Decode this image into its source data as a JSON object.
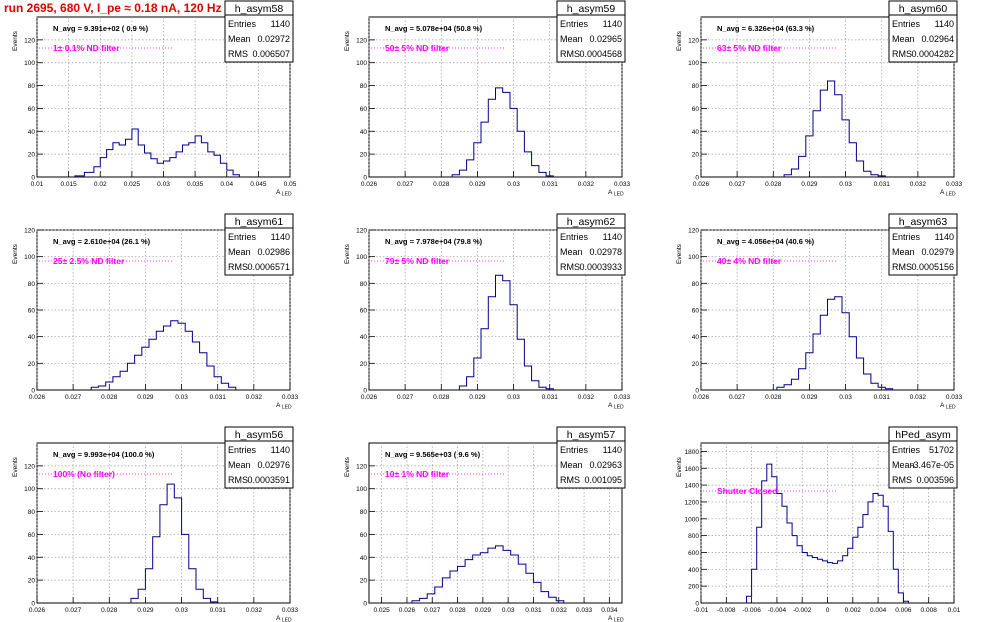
{
  "page": {
    "title": "run 2695,   680 V, I_pe ≈ 0.18 nA, 120 Hz"
  },
  "colors": {
    "histogram_line": "#00008b",
    "annotation_magenta": "#ff00ff",
    "title_red": "#e00000",
    "grid": "#9a9a9a"
  },
  "chart_data": [
    {
      "type": "histogram",
      "name": "h_asym58",
      "stats": {
        "entries": "1140",
        "mean": "0.02972",
        "rms": "0.006507"
      },
      "n_avg_text": "N_avg = 9.391e+02 ( 0.9 %)",
      "filter_text": "1± 0.1% ND filter",
      "ylabel": "Events",
      "xlabel": "A",
      "xlabel_sub": "LED",
      "xlim": [
        0.01,
        0.05
      ],
      "ylim": [
        0,
        140
      ],
      "xticks": [
        0.01,
        0.015,
        0.02,
        0.025,
        0.03,
        0.035,
        0.04,
        0.045,
        0.05
      ],
      "xtick_labels": [
        "0.01",
        "0.015",
        "0.02",
        "0.025",
        "0.03",
        "0.035",
        "0.04",
        "0.045",
        "0.05"
      ],
      "yticks": [
        0,
        20,
        40,
        60,
        80,
        100,
        120
      ],
      "ytick_labels": [
        "0",
        "20",
        "40",
        "60",
        "80",
        "100",
        "120"
      ],
      "bin_edges": [
        0.016,
        0.0175,
        0.019,
        0.02,
        0.021,
        0.022,
        0.023,
        0.024,
        0.025,
        0.026,
        0.027,
        0.028,
        0.029,
        0.03,
        0.031,
        0.032,
        0.033,
        0.034,
        0.035,
        0.036,
        0.037,
        0.038,
        0.039,
        0.04,
        0.041,
        0.042
      ],
      "counts": [
        1,
        4,
        9,
        17,
        24,
        30,
        28,
        33,
        42,
        28,
        21,
        16,
        12,
        14,
        17,
        22,
        28,
        30,
        36,
        30,
        22,
        19,
        12,
        6,
        2
      ]
    },
    {
      "type": "histogram",
      "name": "h_asym59",
      "stats": {
        "entries": "1140",
        "mean": "0.02965",
        "rms": "0.0004568"
      },
      "n_avg_text": "N_avg = 5.078e+04 (50.8 %)",
      "filter_text": "50± 5% ND filter",
      "ylabel": "Events",
      "xlabel": "A",
      "xlabel_sub": "LED",
      "xlim": [
        0.026,
        0.033
      ],
      "ylim": [
        0,
        140
      ],
      "xticks": [
        0.026,
        0.027,
        0.028,
        0.029,
        0.03,
        0.031,
        0.032,
        0.033
      ],
      "xtick_labels": [
        "0.026",
        "0.027",
        "0.028",
        "0.029",
        "0.03",
        "0.031",
        "0.032",
        "0.033"
      ],
      "yticks": [
        0,
        20,
        40,
        60,
        80,
        100,
        120
      ],
      "ytick_labels": [
        "0",
        "20",
        "40",
        "60",
        "80",
        "100",
        "120"
      ],
      "bin_edges": [
        0.0283,
        0.0285,
        0.0287,
        0.0289,
        0.0291,
        0.0293,
        0.0295,
        0.0297,
        0.0299,
        0.0301,
        0.0303,
        0.0305,
        0.0307,
        0.0309,
        0.0311
      ],
      "counts": [
        2,
        6,
        15,
        30,
        48,
        68,
        78,
        74,
        60,
        40,
        22,
        10,
        4,
        1
      ]
    },
    {
      "type": "histogram",
      "name": "h_asym60",
      "stats": {
        "entries": "1140",
        "mean": "0.02964",
        "rms": "0.0004282"
      },
      "n_avg_text": "N_avg = 6.326e+04 (63.3 %)",
      "filter_text": "63± 5% ND filter",
      "ylabel": "Events",
      "xlabel": "A",
      "xlabel_sub": "LED",
      "xlim": [
        0.026,
        0.033
      ],
      "ylim": [
        0,
        140
      ],
      "xticks": [
        0.026,
        0.027,
        0.028,
        0.029,
        0.03,
        0.031,
        0.032,
        0.033
      ],
      "xtick_labels": [
        "0.026",
        "0.027",
        "0.028",
        "0.029",
        "0.03",
        "0.031",
        "0.032",
        "0.033"
      ],
      "yticks": [
        0,
        20,
        40,
        60,
        80,
        100,
        120
      ],
      "ytick_labels": [
        "0",
        "20",
        "40",
        "60",
        "80",
        "100",
        "120"
      ],
      "bin_edges": [
        0.0283,
        0.0285,
        0.0287,
        0.0289,
        0.0291,
        0.0293,
        0.0295,
        0.0297,
        0.0299,
        0.0301,
        0.0303,
        0.0305,
        0.0307,
        0.0309,
        0.0311
      ],
      "counts": [
        2,
        7,
        18,
        36,
        58,
        76,
        84,
        72,
        50,
        30,
        14,
        5,
        2,
        1
      ]
    },
    {
      "type": "histogram",
      "name": "h_asym61",
      "stats": {
        "entries": "1140",
        "mean": "0.02986",
        "rms": "0.0006571"
      },
      "n_avg_text": "N_avg = 2.610e+04 (26.1 %)",
      "filter_text": "25± 2.5% ND filter",
      "ylabel": "Events",
      "xlabel": "A",
      "xlabel_sub": "LED",
      "xlim": [
        0.026,
        0.033
      ],
      "ylim": [
        0,
        120
      ],
      "xticks": [
        0.026,
        0.027,
        0.028,
        0.029,
        0.03,
        0.031,
        0.032,
        0.033
      ],
      "xtick_labels": [
        "0.026",
        "0.027",
        "0.028",
        "0.029",
        "0.03",
        "0.031",
        "0.032",
        "0.033"
      ],
      "yticks": [
        0,
        20,
        40,
        60,
        80,
        100,
        120
      ],
      "ytick_labels": [
        "0",
        "20",
        "40",
        "60",
        "80",
        "100",
        "120"
      ],
      "bin_edges": [
        0.0275,
        0.0277,
        0.0279,
        0.0281,
        0.0283,
        0.0285,
        0.0287,
        0.0289,
        0.0291,
        0.0293,
        0.0295,
        0.0297,
        0.0299,
        0.0301,
        0.0303,
        0.0305,
        0.0307,
        0.0309,
        0.0311,
        0.0313,
        0.0315
      ],
      "counts": [
        2,
        3,
        6,
        10,
        14,
        20,
        26,
        32,
        38,
        44,
        48,
        52,
        50,
        44,
        36,
        28,
        18,
        10,
        5,
        2
      ]
    },
    {
      "type": "histogram",
      "name": "h_asym62",
      "stats": {
        "entries": "1140",
        "mean": "0.02978",
        "rms": "0.0003933"
      },
      "n_avg_text": "N_avg = 7.978e+04 (79.8 %)",
      "filter_text": "79± 5% ND filter",
      "ylabel": "Events",
      "xlabel": "A",
      "xlabel_sub": "LED",
      "xlim": [
        0.026,
        0.033
      ],
      "ylim": [
        0,
        120
      ],
      "xticks": [
        0.026,
        0.027,
        0.028,
        0.029,
        0.03,
        0.031,
        0.032,
        0.033
      ],
      "xtick_labels": [
        "0.026",
        "0.027",
        "0.028",
        "0.029",
        "0.03",
        "0.031",
        "0.032",
        "0.033"
      ],
      "yticks": [
        0,
        20,
        40,
        60,
        80,
        100,
        120
      ],
      "ytick_labels": [
        "0",
        "20",
        "40",
        "60",
        "80",
        "100",
        "120"
      ],
      "bin_edges": [
        0.0285,
        0.0287,
        0.0289,
        0.0291,
        0.0293,
        0.0295,
        0.0297,
        0.0299,
        0.0301,
        0.0303,
        0.0305,
        0.0307,
        0.0309,
        0.0311
      ],
      "counts": [
        3,
        10,
        24,
        46,
        70,
        86,
        82,
        64,
        38,
        18,
        7,
        2,
        1
      ]
    },
    {
      "type": "histogram",
      "name": "h_asym63",
      "stats": {
        "entries": "1140",
        "mean": "0.02979",
        "rms": "0.0005156"
      },
      "n_avg_text": "N_avg = 4.056e+04 (40.6 %)",
      "filter_text": "40± 4% ND filter",
      "ylabel": "Events",
      "xlabel": "A",
      "xlabel_sub": "LED",
      "xlim": [
        0.026,
        0.033
      ],
      "ylim": [
        0,
        120
      ],
      "xticks": [
        0.026,
        0.027,
        0.028,
        0.029,
        0.03,
        0.031,
        0.032,
        0.033
      ],
      "xtick_labels": [
        "0.026",
        "0.027",
        "0.028",
        "0.029",
        "0.03",
        "0.031",
        "0.032",
        "0.033"
      ],
      "yticks": [
        0,
        20,
        40,
        60,
        80,
        100,
        120
      ],
      "ytick_labels": [
        "0",
        "20",
        "40",
        "60",
        "80",
        "100",
        "120"
      ],
      "bin_edges": [
        0.0281,
        0.0283,
        0.0285,
        0.0287,
        0.0289,
        0.0291,
        0.0293,
        0.0295,
        0.0297,
        0.0299,
        0.0301,
        0.0303,
        0.0305,
        0.0307,
        0.0309,
        0.0311,
        0.0313
      ],
      "counts": [
        2,
        4,
        8,
        16,
        28,
        42,
        56,
        68,
        70,
        58,
        40,
        24,
        12,
        5,
        2,
        1
      ]
    },
    {
      "type": "histogram",
      "name": "h_asym56",
      "stats": {
        "entries": "1140",
        "mean": "0.02976",
        "rms": "0.0003591"
      },
      "n_avg_text": "N_avg = 9.993e+04 (100.0 %)",
      "filter_text": "100% (No filter)",
      "ylabel": "Events",
      "xlabel": "A",
      "xlabel_sub": "LED",
      "xlim": [
        0.026,
        0.033
      ],
      "ylim": [
        0,
        140
      ],
      "xticks": [
        0.026,
        0.027,
        0.028,
        0.029,
        0.03,
        0.031,
        0.032,
        0.033
      ],
      "xtick_labels": [
        "0.026",
        "0.027",
        "0.028",
        "0.029",
        "0.03",
        "0.031",
        "0.032",
        "0.033"
      ],
      "yticks": [
        0,
        20,
        40,
        60,
        80,
        100,
        120
      ],
      "ytick_labels": [
        "0",
        "20",
        "40",
        "60",
        "80",
        "100",
        "120"
      ],
      "bin_edges": [
        0.0286,
        0.0288,
        0.029,
        0.0292,
        0.0294,
        0.0296,
        0.0298,
        0.03,
        0.0302,
        0.0304,
        0.0306,
        0.0308,
        0.031
      ],
      "counts": [
        4,
        12,
        30,
        58,
        86,
        104,
        92,
        60,
        30,
        12,
        4,
        1
      ]
    },
    {
      "type": "histogram",
      "name": "h_asym57",
      "stats": {
        "entries": "1140",
        "mean": "0.02963",
        "rms": "0.001095"
      },
      "n_avg_text": "N_avg = 9.565e+03 ( 9.6 %)",
      "filter_text": "10± 1% ND filter",
      "ylabel": "Events",
      "xlabel": "A",
      "xlabel_sub": "LED",
      "xlim": [
        0.0245,
        0.0345
      ],
      "ylim": [
        0,
        140
      ],
      "xticks": [
        0.025,
        0.026,
        0.027,
        0.028,
        0.029,
        0.03,
        0.031,
        0.032,
        0.033,
        0.034
      ],
      "xtick_labels": [
        "0.025",
        "0.026",
        "0.027",
        "0.028",
        "0.029",
        "0.03",
        "0.031",
        "0.032",
        "0.033",
        "0.034"
      ],
      "yticks": [
        0,
        20,
        40,
        60,
        80,
        100,
        120
      ],
      "ytick_labels": [
        "0",
        "20",
        "40",
        "60",
        "80",
        "100",
        "120"
      ],
      "bin_edges": [
        0.0262,
        0.0265,
        0.0268,
        0.0271,
        0.0274,
        0.0277,
        0.028,
        0.0283,
        0.0286,
        0.0289,
        0.0292,
        0.0295,
        0.0298,
        0.0301,
        0.0304,
        0.0307,
        0.031,
        0.0313,
        0.0316,
        0.0319,
        0.0322
      ],
      "counts": [
        2,
        4,
        8,
        14,
        22,
        28,
        32,
        38,
        42,
        44,
        48,
        50,
        46,
        42,
        34,
        26,
        18,
        10,
        5,
        2
      ]
    },
    {
      "type": "histogram",
      "name": "hPed_asym",
      "stats": {
        "entries": "51702",
        "mean": "-3.467e-05",
        "rms": "0.003596"
      },
      "n_avg_text": "",
      "filter_text": "Shutter Closed",
      "ylabel": "Events",
      "xlabel": "",
      "xlabel_sub": "",
      "xlim": [
        -0.01,
        0.01
      ],
      "ylim": [
        0,
        1900
      ],
      "xticks": [
        -0.01,
        -0.008,
        -0.006,
        -0.004,
        -0.002,
        0,
        0.002,
        0.004,
        0.006,
        0.008,
        0.01
      ],
      "xtick_labels": [
        "-0.01",
        "-0.008",
        "-0.006",
        "-0.004",
        "-0.002",
        "0",
        "0.002",
        "0.004",
        "0.006",
        "0.008",
        "0.01"
      ],
      "yticks": [
        0,
        200,
        400,
        600,
        800,
        1000,
        1200,
        1400,
        1600,
        1800
      ],
      "ytick_labels": [
        "0",
        "200",
        "400",
        "600",
        "800",
        "1000",
        "1200",
        "1400",
        "1600",
        "1800"
      ],
      "bin_edges": [
        -0.0064,
        -0.006,
        -0.0056,
        -0.0052,
        -0.0048,
        -0.0044,
        -0.004,
        -0.0036,
        -0.0032,
        -0.0028,
        -0.0024,
        -0.002,
        -0.0016,
        -0.0012,
        -0.0008,
        -0.0004,
        0,
        0.0004,
        0.0008,
        0.0012,
        0.0016,
        0.002,
        0.0024,
        0.0028,
        0.0032,
        0.0036,
        0.004,
        0.0044,
        0.0048,
        0.0052,
        0.0056,
        0.006,
        0.0064
      ],
      "counts": [
        80,
        400,
        900,
        1450,
        1650,
        1500,
        1300,
        1150,
        950,
        800,
        680,
        600,
        560,
        540,
        520,
        500,
        480,
        470,
        500,
        560,
        650,
        780,
        900,
        1050,
        1200,
        1300,
        1280,
        1150,
        850,
        400,
        120,
        20
      ]
    }
  ],
  "stats_labels": {
    "entries": "Entries",
    "mean": "Mean",
    "rms": "RMS"
  }
}
